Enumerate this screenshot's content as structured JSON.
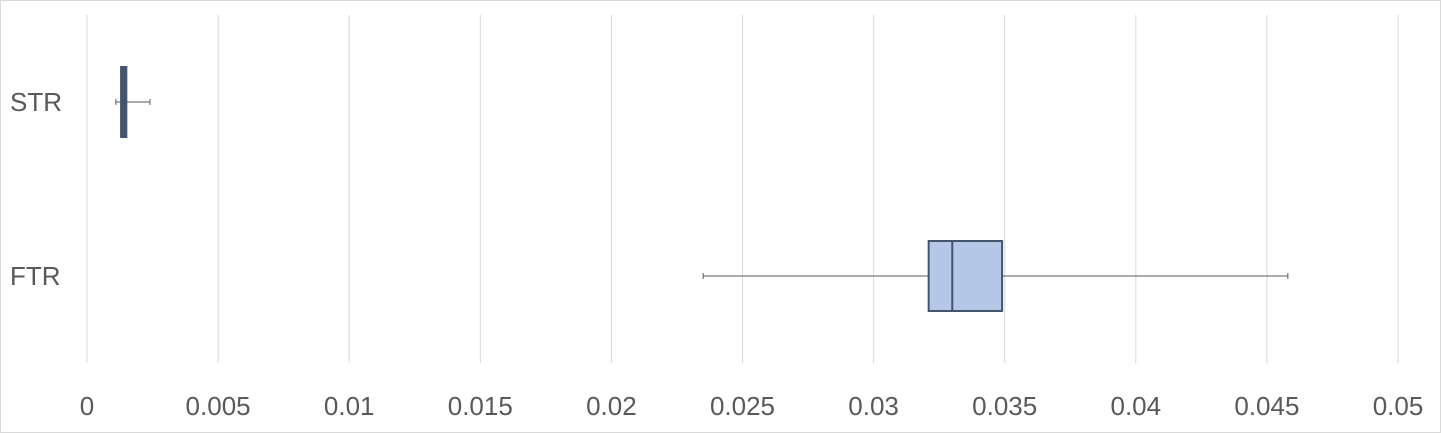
{
  "chart_data": {
    "type": "boxplot",
    "title": "",
    "xlabel": "",
    "ylabel": "",
    "xlim": [
      0,
      0.05
    ],
    "x_ticks": [
      "0",
      "0.005",
      "0.01",
      "0.015",
      "0.02",
      "0.025",
      "0.03",
      "0.035",
      "0.04",
      "0.045",
      "0.05"
    ],
    "grid": "vertical",
    "categories": [
      "STR",
      "FTR"
    ],
    "boxes": [
      {
        "category": "STR",
        "min": 0.0011,
        "q1": 0.0013,
        "median": 0.0014,
        "q3": 0.0015,
        "max": 0.0024,
        "fill": "#44546A",
        "stroke": "#44546A"
      },
      {
        "category": "FTR",
        "min": 0.0235,
        "q1": 0.0321,
        "median": 0.033,
        "q3": 0.0349,
        "max": 0.0458,
        "fill": "#B4C7E7",
        "stroke": "#44546A"
      }
    ],
    "colors": {
      "grid": "#d9d9d9",
      "whisker": "#595959",
      "text": "#595959"
    }
  }
}
